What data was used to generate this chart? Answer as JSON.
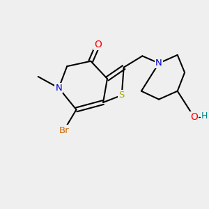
{
  "background_color": "#efefef",
  "bond_color": "#000000",
  "bond_width": 1.5,
  "atom_colors": {
    "O": "#ff0000",
    "N": "#0000cc",
    "S": "#aaaa00",
    "Br": "#cc6600",
    "C": "#000000",
    "H": "#008888"
  },
  "font_size": 9.5,
  "fig_width": 3.0,
  "fig_height": 3.0,
  "xlim": [
    0,
    10
  ],
  "ylim": [
    0,
    10
  ]
}
